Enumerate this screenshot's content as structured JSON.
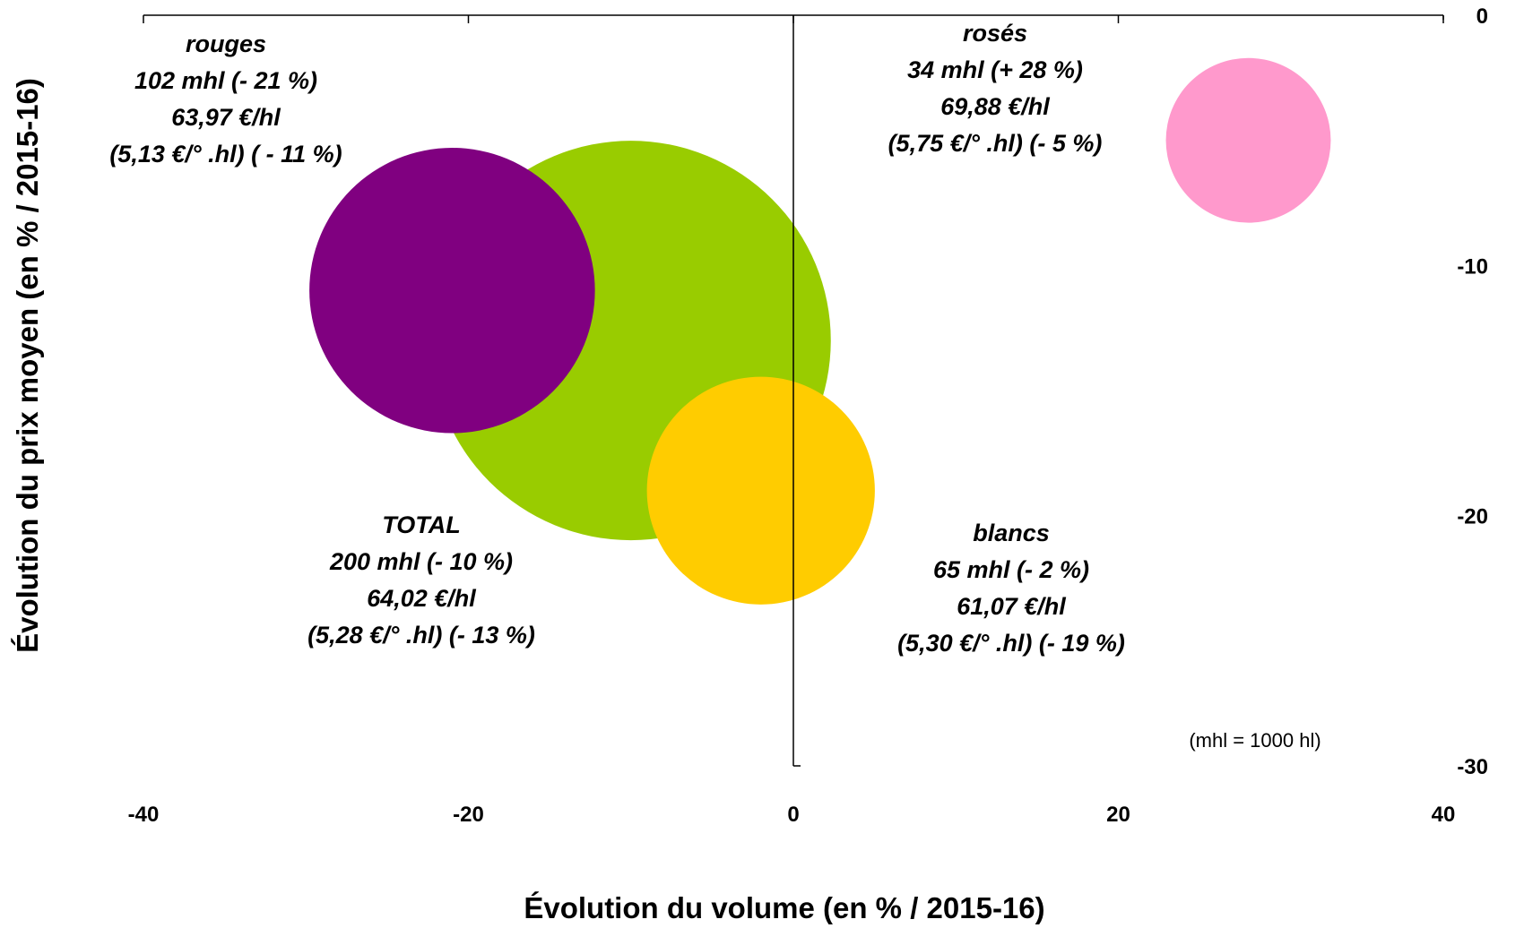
{
  "chart_data": {
    "type": "scatter",
    "subtype": "bubble",
    "xlabel": "Évolution du volume (en % / 2015-16)",
    "ylabel": "Évolution du prix moyen (en % / 2015-16)",
    "xlim": [
      -40,
      40
    ],
    "ylim": [
      -30,
      0
    ],
    "x_ticks": [
      "-40",
      "-20",
      "0",
      "20",
      "40"
    ],
    "y_ticks": [
      "0",
      "-10",
      "-20",
      "-30"
    ],
    "x_tick_values": [
      -40,
      -20,
      0,
      20,
      40
    ],
    "y_tick_values": [
      0,
      -10,
      -20,
      -30
    ],
    "x_axis_position": "top",
    "y_axis_position": "right",
    "grid": false,
    "legend": "none",
    "note": "(mhl = 1000 hl)",
    "series": [
      {
        "name": "TOTAL",
        "x": -10,
        "y": -13,
        "volume_mhl": 200,
        "color": "#99cc00",
        "label_lines": [
          "TOTAL",
          "200 mhl (- 10 %)",
          "64,02 €/hl",
          "(5,28 €/° .hl) (- 13 %)"
        ]
      },
      {
        "name": "rouges",
        "x": -21,
        "y": -11,
        "volume_mhl": 102,
        "color": "#800080",
        "label_lines": [
          "rouges",
          "102 mhl (- 21 %)",
          "63,97 €/hl",
          "(5,13 €/° .hl) ( - 11 %)"
        ]
      },
      {
        "name": "blancs",
        "x": -2,
        "y": -19,
        "volume_mhl": 65,
        "color": "#ffcc00",
        "label_lines": [
          "blancs",
          "65 mhl (- 2 %)",
          "61,07 €/hl",
          "(5,30 €/° .hl) (- 19 %)"
        ]
      },
      {
        "name": "rosés",
        "x": 28,
        "y": -5,
        "volume_mhl": 34,
        "color": "#ff99cc",
        "label_lines": [
          "rosés",
          "34 mhl (+ 28 %)",
          "69,88 €/hl",
          "(5,75 €/° .hl) (- 5 %)"
        ]
      }
    ]
  }
}
